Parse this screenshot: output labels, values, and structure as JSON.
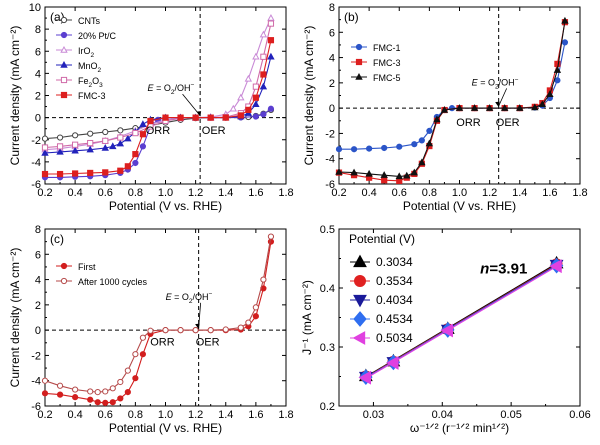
{
  "chart_data": [
    {
      "id": "a",
      "type": "line",
      "panel_label": "(a)",
      "xlabel": "Potential (V vs. RHE)",
      "ylabel": "Current density (mA cm⁻²)",
      "xlim": [
        0.2,
        1.8
      ],
      "ylim": [
        -6,
        10
      ],
      "xticks": [
        0.2,
        0.4,
        0.6,
        0.8,
        1.0,
        1.2,
        1.4,
        1.6,
        1.8
      ],
      "xtick_labels": [
        "0.2",
        "0.4",
        "0.6",
        "0.8",
        "1.0",
        "1.2",
        "1.4",
        "1.6",
        "1.8"
      ],
      "yticks": [
        -6,
        -4,
        -2,
        0,
        2,
        4,
        6,
        8,
        10
      ],
      "ytick_labels": [
        "-6",
        "-4",
        "-2",
        "0",
        "2",
        "4",
        "6",
        "8",
        "10"
      ],
      "hline_y": 0,
      "vline_x": 1.23,
      "annotations": [
        {
          "text": "E = O₂/OH⁻",
          "x": 1.08,
          "y": 2.4
        },
        {
          "text": "ORR",
          "x": 0.95,
          "y": -1.5
        },
        {
          "text": "OER",
          "x": 1.32,
          "y": -1.5
        }
      ],
      "legend": "top-left",
      "series": [
        {
          "name": "CNTs",
          "color": "#444444",
          "marker": "circle-open",
          "x": [
            0.2,
            0.3,
            0.4,
            0.5,
            0.6,
            0.7,
            0.8,
            0.9,
            1.0,
            1.1,
            1.2,
            1.3,
            1.4,
            1.5,
            1.55,
            1.6,
            1.65,
            1.7
          ],
          "y": [
            -1.9,
            -1.8,
            -1.6,
            -1.45,
            -1.3,
            -1.15,
            -0.95,
            -0.7,
            -0.45,
            -0.2,
            -0.05,
            0,
            0,
            0.02,
            0.05,
            0.15,
            0.35,
            0.7
          ]
        },
        {
          "name": "20% Pt/C",
          "color": "#5b3fd0",
          "marker": "circle",
          "x": [
            0.2,
            0.3,
            0.4,
            0.5,
            0.6,
            0.7,
            0.75,
            0.8,
            0.85,
            0.9,
            0.95,
            1.0,
            1.1,
            1.2,
            1.3,
            1.4,
            1.5,
            1.6,
            1.65,
            1.7
          ],
          "y": [
            -5.4,
            -5.4,
            -5.35,
            -5.3,
            -5.2,
            -5.0,
            -4.7,
            -4.1,
            -2.6,
            -0.8,
            -0.2,
            0,
            0,
            0,
            0,
            0,
            0.02,
            0.1,
            0.3,
            0.8
          ]
        },
        {
          "name": "IrO₂",
          "color": "#c98ad6",
          "marker": "triangle-open",
          "x": [
            0.2,
            0.3,
            0.4,
            0.5,
            0.6,
            0.7,
            0.8,
            0.9,
            1.0,
            1.1,
            1.2,
            1.3,
            1.4,
            1.45,
            1.5,
            1.55,
            1.6,
            1.65,
            1.7
          ],
          "y": [
            -2.9,
            -2.8,
            -2.6,
            -2.4,
            -2.1,
            -1.7,
            -1.2,
            -0.6,
            -0.2,
            0,
            0,
            0.05,
            0.3,
            0.8,
            1.8,
            3.5,
            5.5,
            7.5,
            9.0
          ]
        },
        {
          "name": "MnO₂",
          "color": "#2222bb",
          "marker": "triangle",
          "x": [
            0.2,
            0.3,
            0.4,
            0.5,
            0.6,
            0.65,
            0.7,
            0.75,
            0.8,
            0.85,
            0.9,
            1.0,
            1.1,
            1.2,
            1.3,
            1.4,
            1.5,
            1.55,
            1.6,
            1.65,
            1.7
          ],
          "y": [
            -3.2,
            -3.1,
            -3.0,
            -2.9,
            -2.75,
            -2.6,
            -2.35,
            -1.9,
            -1.3,
            -0.6,
            -0.2,
            0,
            0,
            0,
            0,
            0,
            0.1,
            0.4,
            1.2,
            2.8,
            5.5
          ]
        },
        {
          "name": "Fe₂O₃",
          "color": "#d06aa8",
          "marker": "square-open",
          "x": [
            0.2,
            0.3,
            0.4,
            0.5,
            0.6,
            0.7,
            0.8,
            0.9,
            1.0,
            1.1,
            1.2,
            1.3,
            1.4,
            1.5,
            1.55,
            1.6,
            1.65,
            1.7
          ],
          "y": [
            -2.7,
            -2.6,
            -2.45,
            -2.3,
            -2.1,
            -1.8,
            -1.4,
            -0.8,
            -0.3,
            -0.05,
            0,
            0,
            0.05,
            0.4,
            1.0,
            2.8,
            5.5,
            8.5
          ]
        },
        {
          "name": "FMC-3",
          "color": "#dd1f1f",
          "marker": "square",
          "x": [
            0.2,
            0.3,
            0.4,
            0.5,
            0.6,
            0.7,
            0.75,
            0.8,
            0.85,
            0.9,
            1.0,
            1.1,
            1.2,
            1.3,
            1.4,
            1.5,
            1.55,
            1.6,
            1.65,
            1.7
          ],
          "y": [
            -5.1,
            -5.1,
            -5.05,
            -5.0,
            -4.95,
            -4.8,
            -4.4,
            -3.3,
            -1.5,
            -0.3,
            0,
            0,
            0,
            0,
            0,
            0.2,
            0.7,
            1.8,
            3.9,
            7.0
          ]
        }
      ]
    },
    {
      "id": "b",
      "type": "line",
      "panel_label": "(b)",
      "xlabel": "Potential (V vs. RHE)",
      "ylabel": "Current density (mA cm⁻²)",
      "xlim": [
        0.2,
        1.8
      ],
      "ylim": [
        -6,
        8
      ],
      "xticks": [
        0.2,
        0.4,
        0.6,
        0.8,
        1.0,
        1.2,
        1.4,
        1.6,
        1.8
      ],
      "xtick_labels": [
        "0.2",
        "0.4",
        "0.6",
        "0.8",
        "1.0",
        "1.2",
        "1.4",
        "1.6",
        "1.8"
      ],
      "yticks": [
        -6,
        -4,
        -2,
        0,
        2,
        4,
        6,
        8
      ],
      "ytick_labels": [
        "-6",
        "-4",
        "-2",
        "0",
        "2",
        "4",
        "6",
        "8"
      ],
      "hline_y": 0,
      "vline_x": 1.26,
      "annotations": [
        {
          "text": "E = O₂/OH⁻",
          "x": 1.28,
          "y": 1.8
        },
        {
          "text": "ORR",
          "x": 1.06,
          "y": -1.4
        },
        {
          "text": "OER",
          "x": 1.32,
          "y": -1.4
        }
      ],
      "legend": "top-left",
      "series": [
        {
          "name": "FMC-1",
          "color": "#2b55c8",
          "marker": "circle",
          "x": [
            0.2,
            0.3,
            0.4,
            0.5,
            0.6,
            0.7,
            0.75,
            0.8,
            0.85,
            0.9,
            0.95,
            1.0,
            1.1,
            1.2,
            1.3,
            1.4,
            1.5,
            1.55,
            1.6,
            1.65,
            1.7
          ],
          "y": [
            -3.25,
            -3.25,
            -3.2,
            -3.15,
            -3.05,
            -2.85,
            -2.55,
            -1.8,
            -0.7,
            -0.15,
            0,
            0,
            0,
            0,
            0,
            0,
            0.05,
            0.2,
            0.8,
            2.2,
            5.2
          ]
        },
        {
          "name": "FMC-3",
          "color": "#dd1f1f",
          "marker": "square",
          "x": [
            0.2,
            0.3,
            0.4,
            0.5,
            0.6,
            0.65,
            0.7,
            0.75,
            0.8,
            0.85,
            0.9,
            1.0,
            1.1,
            1.2,
            1.3,
            1.4,
            1.5,
            1.55,
            1.6,
            1.65,
            1.7
          ],
          "y": [
            -5.1,
            -5.3,
            -5.5,
            -5.7,
            -5.75,
            -5.5,
            -5.2,
            -4.4,
            -3.0,
            -1.0,
            -0.15,
            0,
            0,
            0,
            0,
            0,
            0.1,
            0.4,
            1.4,
            3.5,
            6.8
          ]
        },
        {
          "name": "FMC-5",
          "color": "#111111",
          "marker": "triangle",
          "x": [
            0.2,
            0.3,
            0.4,
            0.5,
            0.6,
            0.65,
            0.7,
            0.75,
            0.8,
            0.85,
            0.9,
            1.0,
            1.1,
            1.2,
            1.3,
            1.4,
            1.5,
            1.55,
            1.6,
            1.65,
            1.7
          ],
          "y": [
            -5.05,
            -5.1,
            -5.2,
            -5.3,
            -5.4,
            -5.35,
            -5.1,
            -4.3,
            -2.8,
            -0.9,
            -0.15,
            0,
            0,
            0,
            0,
            0,
            0.05,
            0.3,
            1.1,
            3.0,
            6.9
          ]
        }
      ]
    },
    {
      "id": "c",
      "type": "line",
      "panel_label": "(c)",
      "xlabel": "Potential (V vs. RHE)",
      "ylabel": "Current density (mA cm⁻²)",
      "xlim": [
        0.2,
        1.8
      ],
      "ylim": [
        -6,
        8
      ],
      "xticks": [
        0.2,
        0.4,
        0.6,
        0.8,
        1.0,
        1.2,
        1.4,
        1.6,
        1.8
      ],
      "xtick_labels": [
        "0.2",
        "0.4",
        "0.6",
        "0.8",
        "1.0",
        "1.2",
        "1.4",
        "1.6",
        "1.8"
      ],
      "yticks": [
        -6,
        -4,
        -2,
        0,
        2,
        4,
        6,
        8
      ],
      "ytick_labels": [
        "-6",
        "-4",
        "-2",
        "0",
        "2",
        "4",
        "6",
        "8"
      ],
      "hline_y": 0,
      "vline_x": 1.22,
      "annotations": [
        {
          "text": "E = O₂/OH⁻",
          "x": 1.2,
          "y": 2.4
        },
        {
          "text": "ORR",
          "x": 0.98,
          "y": -1.2
        },
        {
          "text": "OER",
          "x": 1.28,
          "y": -1.2
        }
      ],
      "legend": "top-left",
      "series": [
        {
          "name": "First",
          "color": "#d21e1e",
          "marker": "circle",
          "x": [
            0.2,
            0.3,
            0.4,
            0.5,
            0.55,
            0.6,
            0.65,
            0.7,
            0.75,
            0.8,
            0.85,
            0.9,
            1.0,
            1.1,
            1.2,
            1.3,
            1.4,
            1.5,
            1.55,
            1.6,
            1.65,
            1.7
          ],
          "y": [
            -5.0,
            -5.1,
            -5.3,
            -5.5,
            -5.7,
            -5.75,
            -5.7,
            -5.4,
            -4.9,
            -3.8,
            -1.9,
            -0.3,
            0,
            0,
            0,
            0,
            0,
            0.05,
            0.3,
            1.1,
            3.3,
            7.0
          ]
        },
        {
          "name": "After 1000 cycles",
          "color": "#b54a4a",
          "marker": "circle-open",
          "x": [
            0.2,
            0.3,
            0.4,
            0.5,
            0.55,
            0.6,
            0.65,
            0.7,
            0.75,
            0.8,
            0.85,
            0.9,
            1.0,
            1.1,
            1.2,
            1.3,
            1.4,
            1.5,
            1.55,
            1.6,
            1.65,
            1.7
          ],
          "y": [
            -4.0,
            -4.4,
            -4.7,
            -4.85,
            -4.9,
            -4.85,
            -4.6,
            -4.1,
            -3.2,
            -1.9,
            -0.6,
            -0.05,
            0,
            0,
            0,
            0,
            0.05,
            0.2,
            0.6,
            1.8,
            4.0,
            7.4
          ]
        }
      ]
    },
    {
      "id": "d",
      "type": "line",
      "xlabel": "ω⁻¹ᐟ² (r⁻¹ᐟ² min¹ᐟ²)",
      "ylabel": "J⁻¹ (mA cm⁻²)",
      "xlim": [
        0.025,
        0.06
      ],
      "ylim": [
        0.2,
        0.5
      ],
      "xticks": [
        0.03,
        0.04,
        0.05,
        0.06
      ],
      "xtick_labels": [
        "0.03",
        "0.04",
        "0.05",
        "0.06"
      ],
      "yticks": [
        0.2,
        0.3,
        0.4,
        0.5
      ],
      "ytick_labels": [
        "0.2",
        "0.3",
        "0.4",
        "0.5"
      ],
      "legend_title": "Potential (V)",
      "legend": "top-left",
      "annotations": [
        {
          "text": "n=3.91",
          "x": 0.0455,
          "y": 0.425
        }
      ],
      "series": [
        {
          "name": "0.3034",
          "color": "#000000",
          "marker": "triangle",
          "x": [
            0.0289,
            0.0329,
            0.0408,
            0.0566
          ],
          "y": [
            0.251,
            0.276,
            0.331,
            0.442
          ]
        },
        {
          "name": "0.3534",
          "color": "#e02020",
          "marker": "circle",
          "x": [
            0.0289,
            0.0329,
            0.0408,
            0.0566
          ],
          "y": [
            0.25,
            0.275,
            0.33,
            0.44
          ]
        },
        {
          "name": "0.4034",
          "color": "#1a1a9a",
          "marker": "triangle-down",
          "x": [
            0.0289,
            0.0329,
            0.0408,
            0.0566
          ],
          "y": [
            0.249,
            0.274,
            0.329,
            0.439
          ]
        },
        {
          "name": "0.4534",
          "color": "#2f6ef0",
          "marker": "diamond",
          "x": [
            0.0289,
            0.0329,
            0.0408,
            0.0566
          ],
          "y": [
            0.249,
            0.274,
            0.329,
            0.438
          ]
        },
        {
          "name": "0.5034",
          "color": "#e040e0",
          "marker": "triangle-left",
          "x": [
            0.0289,
            0.0329,
            0.0408,
            0.0566
          ],
          "y": [
            0.248,
            0.273,
            0.328,
            0.437
          ]
        }
      ]
    }
  ]
}
